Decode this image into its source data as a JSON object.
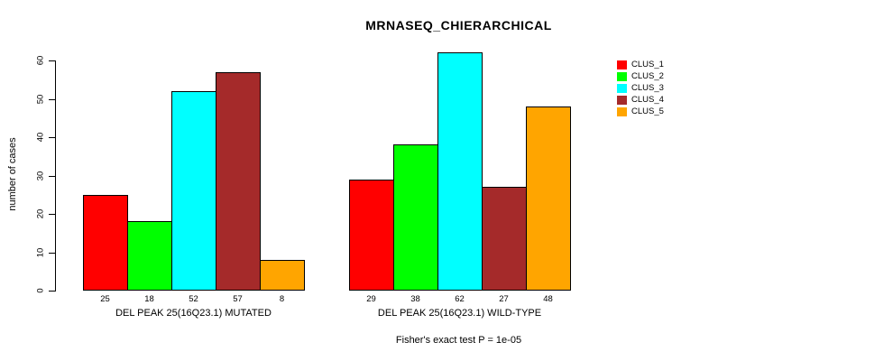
{
  "title": "MRNASEQ_CHIERARCHICAL",
  "ylabel": "number of cases",
  "footnote": "Fisher's exact test P = 1e-05",
  "legend": {
    "items": [
      {
        "label": "CLUS_1",
        "color": "#FF0000"
      },
      {
        "label": "CLUS_2",
        "color": "#00FF00"
      },
      {
        "label": "CLUS_3",
        "color": "#00FFFF"
      },
      {
        "label": "CLUS_4",
        "color": "#A52A2A"
      },
      {
        "label": "CLUS_5",
        "color": "#FFA500"
      }
    ]
  },
  "chart_data": {
    "type": "bar",
    "title": "MRNASEQ_CHIERARCHICAL",
    "ylabel": "number of cases",
    "xlabel": "",
    "series": [
      {
        "name": "CLUS_1",
        "color": "#FF0000",
        "values": [
          25,
          29
        ]
      },
      {
        "name": "CLUS_2",
        "color": "#00FF00",
        "values": [
          18,
          38
        ]
      },
      {
        "name": "CLUS_3",
        "color": "#00FFFF",
        "values": [
          52,
          62
        ]
      },
      {
        "name": "CLUS_4",
        "color": "#A52A2A",
        "values": [
          57,
          27
        ]
      },
      {
        "name": "CLUS_5",
        "color": "#FFA500",
        "values": [
          8,
          48
        ]
      }
    ],
    "groups": [
      {
        "label": "DEL PEAK 25(16Q23.1) MUTATED",
        "values": [
          25,
          18,
          52,
          57,
          8
        ]
      },
      {
        "label": "DEL PEAK 25(16Q23.1) WILD-TYPE",
        "values": [
          29,
          38,
          62,
          27,
          48
        ]
      }
    ],
    "value_labels_shown": true,
    "yticks": [
      0,
      10,
      20,
      30,
      40,
      50,
      60
    ],
    "ylim": [
      0,
      63
    ],
    "grid": false,
    "bar_outline_color": "#000000",
    "legend_position": "right",
    "annotation": "Fisher's exact test P = 1e-05"
  }
}
